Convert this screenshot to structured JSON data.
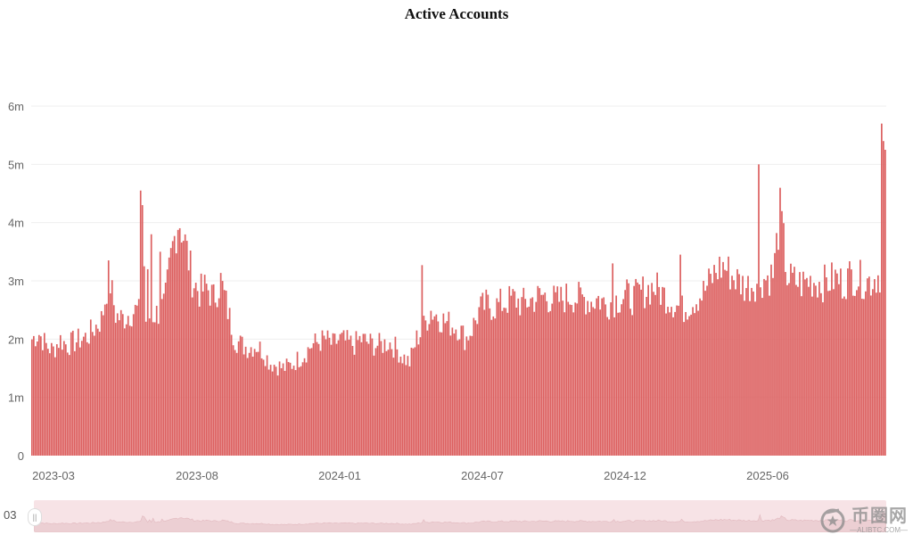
{
  "chart_data": {
    "type": "bar",
    "title": "Active Accounts",
    "xlabel": "",
    "ylabel": "",
    "color": "#dc5f5f",
    "x_range": [
      "2023-02",
      "2025-10"
    ],
    "ylim": [
      0,
      6000000
    ],
    "yticks": [
      0,
      1000000,
      2000000,
      3000000,
      4000000,
      5000000,
      6000000
    ],
    "ytick_labels": [
      "0",
      "1m",
      "2m",
      "3m",
      "4m",
      "5m",
      "6m"
    ],
    "xtick_labels": [
      "2023-03",
      "2023-08",
      "2024-01",
      "2024-07",
      "2024-12",
      "2025-06"
    ],
    "grid": true,
    "legend": "none",
    "unit": "accounts",
    "series": [
      {
        "values_millions": [
          2.0,
          2.1,
          1.9,
          1.8,
          2.0,
          1.9,
          1.95,
          2.0,
          2.05,
          2.2,
          2.35,
          3.1,
          2.4,
          2.35,
          2.45,
          2.5,
          2.3,
          2.4,
          2.45,
          2.6,
          3.5,
          4.1,
          3.6,
          3.0,
          2.8,
          2.9,
          2.7,
          3.0,
          2.5,
          2.0,
          1.9,
          1.85,
          1.9,
          1.8,
          1.6,
          1.55,
          1.5,
          1.55,
          1.65,
          1.75,
          1.9,
          1.95,
          2.0,
          1.9,
          2.0,
          1.95,
          1.9,
          2.0,
          1.95,
          1.9,
          1.9,
          1.95,
          1.85,
          1.7,
          1.6,
          2.0,
          2.2,
          2.5,
          2.4,
          2.3,
          2.25,
          2.2,
          2.0,
          2.2,
          2.5,
          2.6,
          2.55,
          2.6,
          2.65,
          2.7,
          2.6,
          2.65,
          2.7,
          2.75,
          2.7,
          2.65,
          2.7,
          2.75,
          2.7,
          2.7,
          2.65,
          2.7,
          2.6,
          2.65,
          2.7,
          2.75,
          2.7,
          2.8,
          2.85,
          2.9,
          2.8,
          2.7,
          2.6,
          2.5,
          2.6,
          2.7,
          2.8,
          3.0,
          3.2,
          3.25,
          3.1,
          3.0,
          2.9,
          2.95,
          3.0,
          3.05,
          3.1,
          4.2,
          3.05,
          3.0,
          2.95,
          3.0,
          3.0,
          2.95,
          3.0,
          3.05,
          2.95,
          3.1,
          3.05,
          3.0,
          3.0,
          3.1,
          3.2
        ]
      }
    ],
    "annotations": "peaks near 4.5m (2023-05), 5.0m (2025-05), 5.7m (2025-10)"
  },
  "navigator": {
    "start_label": "03"
  },
  "watermark": {
    "brand_cn": "币圈网",
    "url": "—ALIBTC.COM—"
  }
}
